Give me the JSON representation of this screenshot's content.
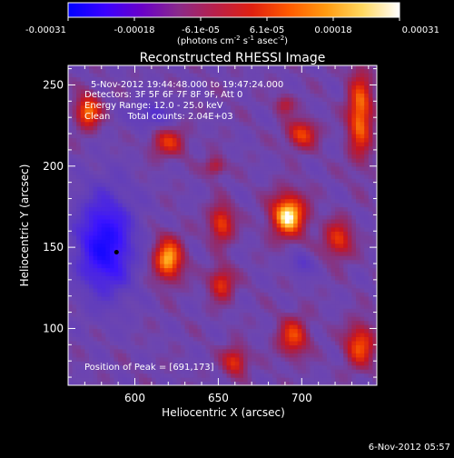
{
  "colorbar": {
    "stops": [
      "#0000ff",
      "#3a00ff",
      "#6a00c8",
      "#8a2a8a",
      "#b8204a",
      "#e02010",
      "#ff5a00",
      "#ff9a10",
      "#ffd860",
      "#ffffff"
    ],
    "ticks": [
      "-0.00031",
      "-0.00018",
      "-6.1e-05",
      "6.1e-05",
      "0.00018",
      "0.00031"
    ],
    "unit_main": "(photons cm",
    "unit_sup1": "-2",
    "unit_mid1": " s",
    "unit_sup2": "-1",
    "unit_mid2": " asec",
    "unit_sup3": "-2",
    "unit_end": ")"
  },
  "plot": {
    "title": "Reconstructed RHESSI Image",
    "xlabel": "Heliocentric X (arcsec)",
    "ylabel": "Heliocentric Y (arcsec)",
    "xticks": [
      "600",
      "650",
      "700"
    ],
    "yticks": [
      "100",
      "150",
      "200",
      "250"
    ],
    "annotations": [
      "5-Nov-2012 19:44:48.000 to 19:47:24.000",
      "Detectors: 3F 5F 6F 7F 8F 9F, Att 0",
      "Energy Range: 12.0 - 25.0 keV",
      "Clean      Total counts: 2.04E+03"
    ],
    "peak_label": "Position of Peak = [691,173]",
    "background_color": "#5a3aa8"
  },
  "footer": {
    "date": "6-Nov-2012 05:57"
  },
  "chart_data": {
    "type": "heatmap",
    "title": "Reconstructed RHESSI Image",
    "xlabel": "Heliocentric X (arcsec)",
    "ylabel": "Heliocentric Y (arcsec)",
    "xlim": [
      560,
      745
    ],
    "ylim": [
      65,
      262
    ],
    "colorbar_range": [
      -0.00031,
      0.00031
    ],
    "peak": [
      691,
      173
    ],
    "marker": [
      589,
      147
    ],
    "sources": [
      {
        "x": 692,
        "y": 170,
        "sx": 7,
        "sy": 9,
        "v": 1.0
      },
      {
        "x": 620,
        "y": 143,
        "sx": 6,
        "sy": 9,
        "v": 0.85
      },
      {
        "x": 652,
        "y": 165,
        "sx": 5,
        "sy": 8,
        "v": 0.6
      },
      {
        "x": 652,
        "y": 128,
        "sx": 5,
        "sy": 7,
        "v": 0.55
      },
      {
        "x": 700,
        "y": 220,
        "sx": 6,
        "sy": 6,
        "v": 0.6
      },
      {
        "x": 735,
        "y": 232,
        "sx": 5,
        "sy": 18,
        "v": 0.75
      },
      {
        "x": 722,
        "y": 155,
        "sx": 6,
        "sy": 8,
        "v": 0.55
      },
      {
        "x": 735,
        "y": 90,
        "sx": 6,
        "sy": 9,
        "v": 0.65
      },
      {
        "x": 695,
        "y": 95,
        "sx": 6,
        "sy": 8,
        "v": 0.6
      },
      {
        "x": 620,
        "y": 215,
        "sx": 7,
        "sy": 6,
        "v": 0.5
      },
      {
        "x": 572,
        "y": 234,
        "sx": 5,
        "sy": 7,
        "v": 0.75
      },
      {
        "x": 660,
        "y": 80,
        "sx": 5,
        "sy": 6,
        "v": 0.55
      },
      {
        "x": 648,
        "y": 200,
        "sx": 4,
        "sy": 4,
        "v": 0.4
      },
      {
        "x": 690,
        "y": 238,
        "sx": 4,
        "sy": 4,
        "v": 0.35
      }
    ],
    "negative_regions": [
      {
        "x": 582,
        "y": 152,
        "sx": 12,
        "sy": 22,
        "v": -0.8
      },
      {
        "x": 610,
        "y": 232,
        "sx": 8,
        "sy": 6,
        "v": -0.35
      },
      {
        "x": 700,
        "y": 140,
        "sx": 5,
        "sy": 5,
        "v": -0.3
      }
    ]
  }
}
